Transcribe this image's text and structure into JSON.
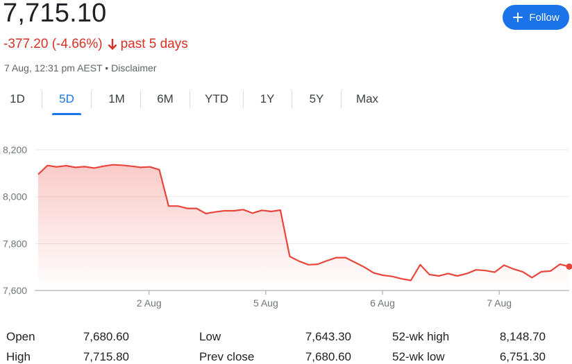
{
  "quote": {
    "price": "7,715.10",
    "change": "-377.20 (-4.66%)",
    "period": "past 5 days",
    "timestamp": "7 Aug, 12:31 pm AEST",
    "separator": "•",
    "disclaimer": "Disclaimer",
    "down_color": "#d93025"
  },
  "follow_button": {
    "label": "Follow",
    "color": "#1a73e8",
    "icon": "plus-icon"
  },
  "tabs": [
    {
      "label": "1D",
      "active": false
    },
    {
      "label": "5D",
      "active": true
    },
    {
      "label": "1M",
      "active": false
    },
    {
      "label": "6M",
      "active": false
    },
    {
      "label": "YTD",
      "active": false
    },
    {
      "label": "1Y",
      "active": false
    },
    {
      "label": "5Y",
      "active": false
    },
    {
      "label": "Max",
      "active": false
    }
  ],
  "chart_data": {
    "type": "line",
    "title": "",
    "xlabel": "",
    "ylabel": "",
    "ylim": [
      7600,
      8200
    ],
    "yticks": [
      "8,200",
      "8,000",
      "7,800",
      "7,600"
    ],
    "ytick_values": [
      8200,
      8000,
      7800,
      7600
    ],
    "xticks": [
      "2 Aug",
      "5 Aug",
      "6 Aug",
      "7 Aug"
    ],
    "xtick_positions": [
      9.5,
      19.5,
      29.5,
      39.5
    ],
    "xlim": [
      0,
      45.5
    ],
    "grid": true,
    "line_color": "#e8453c",
    "fill_color": "#e8453c",
    "series": [
      {
        "values": [
          8095,
          8133,
          8127,
          8132,
          8125,
          8128,
          8122,
          8130,
          8136,
          8134,
          8130,
          8125,
          8127,
          8115,
          7960,
          7960,
          7950,
          7950,
          7928,
          7935,
          7940,
          7940,
          7945,
          7930,
          7942,
          7937,
          7943,
          7745,
          7725,
          7710,
          7712,
          7727,
          7740,
          7740,
          7720,
          7700,
          7675,
          7665,
          7660,
          7650,
          7643,
          7710,
          7668,
          7662,
          7672,
          7662,
          7672,
          7688,
          7685,
          7678,
          7708,
          7692,
          7680,
          7655,
          7680,
          7683,
          7712,
          7702
        ]
      }
    ]
  },
  "stats": [
    {
      "label": "Open",
      "value": "7,680.60"
    },
    {
      "label": "High",
      "value": "7,715.80"
    },
    {
      "label": "Low",
      "value": "7,643.30"
    },
    {
      "label": "Prev close",
      "value": "7,680.60"
    },
    {
      "label": "52-wk high",
      "value": "8,148.70"
    },
    {
      "label": "52-wk low",
      "value": "6,751.30"
    }
  ]
}
